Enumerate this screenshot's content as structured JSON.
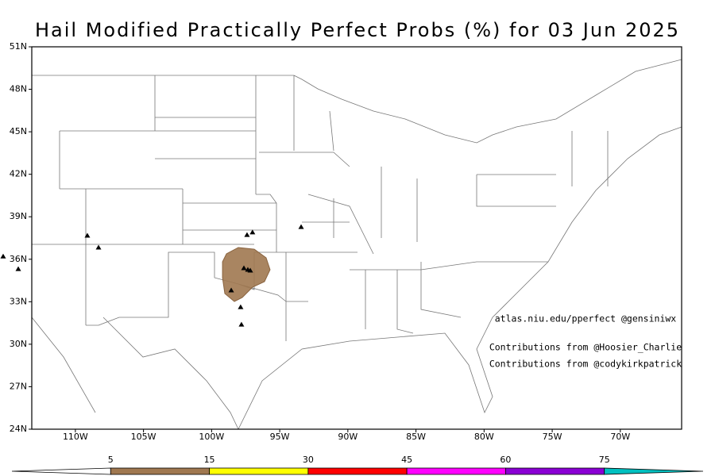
{
  "chart_data": {
    "type": "map",
    "title": "Hail Modified Practically Perfect Probs (%) for 03 Jun 2025",
    "xlim": [
      -113.2,
      -65.5
    ],
    "ylim": [
      24,
      51
    ],
    "xticks": [
      {
        "value": -110,
        "label": "110W"
      },
      {
        "value": -105,
        "label": "105W"
      },
      {
        "value": -100,
        "label": "100W"
      },
      {
        "value": -95,
        "label": "95W"
      },
      {
        "value": -90,
        "label": "90W"
      },
      {
        "value": -85,
        "label": "85W"
      },
      {
        "value": -80,
        "label": "80W"
      },
      {
        "value": -75,
        "label": "75W"
      },
      {
        "value": -70,
        "label": "70W"
      }
    ],
    "yticks": [
      {
        "value": 24,
        "label": "24N"
      },
      {
        "value": 27,
        "label": "27N"
      },
      {
        "value": 30,
        "label": "30N"
      },
      {
        "value": 33,
        "label": "33N"
      },
      {
        "value": 36,
        "label": "36N"
      },
      {
        "value": 39,
        "label": "39N"
      },
      {
        "value": 42,
        "label": "42N"
      },
      {
        "value": 45,
        "label": "45N"
      },
      {
        "value": 48,
        "label": "48N"
      },
      {
        "value": 51,
        "label": "51N"
      }
    ],
    "reports": {
      "color": "#000000",
      "x": [
        -109.12,
        -108.3,
        -115.3,
        -114.19,
        -97.4,
        -97.0,
        -93.43,
        -97.63,
        -97.34,
        -97.16,
        -98.56,
        -97.87,
        -97.81
      ],
      "y": [
        37.67,
        36.83,
        36.2,
        35.31,
        37.72,
        37.9,
        38.28,
        35.37,
        35.26,
        35.2,
        33.8,
        32.62,
        31.39
      ]
    },
    "prob_area": {
      "x": [
        -98.91,
        -98.04,
        -96.87,
        -96.0,
        -95.71,
        -96.12,
        -96.99,
        -97.75,
        -98.33,
        -99.03,
        -99.2,
        -99.2
      ],
      "y": [
        36.38,
        36.83,
        36.71,
        36.1,
        35.26,
        34.42,
        34.03,
        33.3,
        33.02,
        33.58,
        34.7,
        35.82
      ]
    },
    "annotations": [
      "atlas.niu.edu/pperfect @gensiniwx",
      "Contributions from @Hoosier_Charlie",
      "Contributions from @codykirkpatrick"
    ],
    "colorbar": {
      "levels": [
        5,
        15,
        30,
        45,
        60,
        75
      ],
      "colors": [
        "#ffffff",
        "#a07850",
        "#ffff00",
        "#ff0000",
        "#ff00ff",
        "#8a00d4",
        "#00c0c0"
      ]
    }
  }
}
